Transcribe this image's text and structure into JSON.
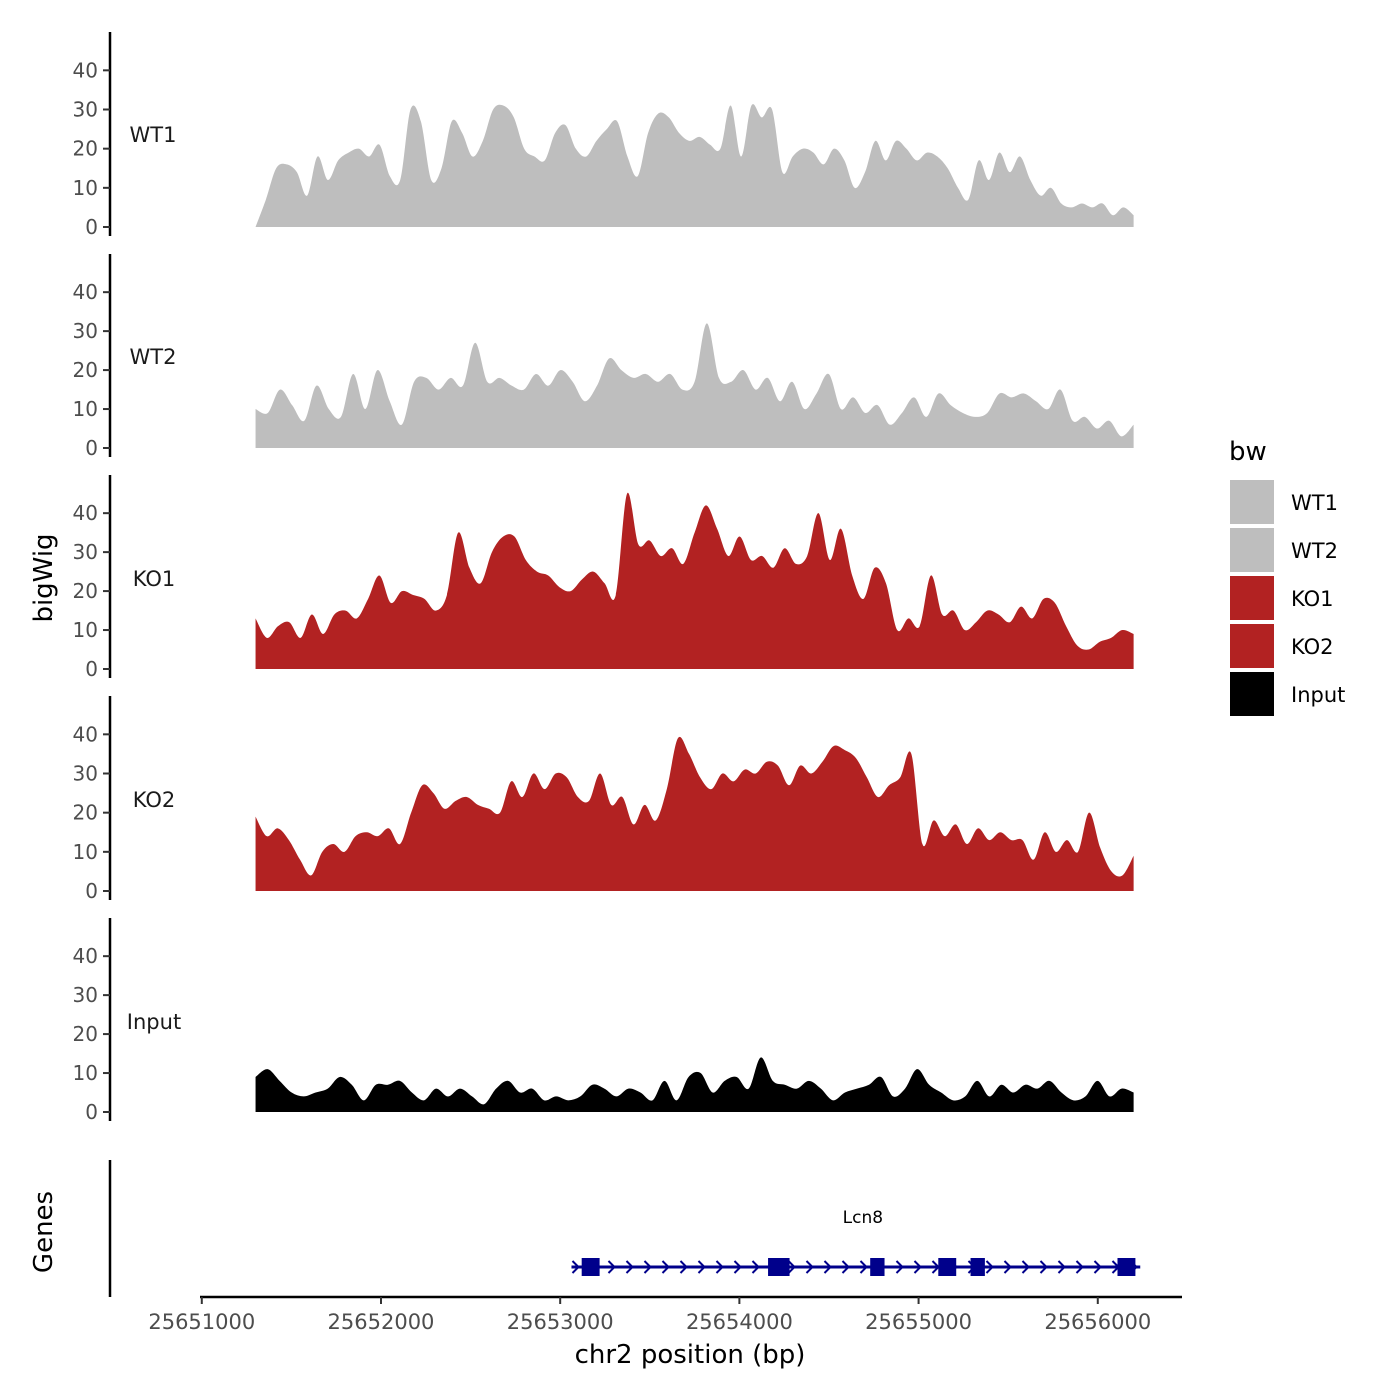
{
  "chart_data": {
    "type": "area",
    "ylabel": "bigWig",
    "xlabel": "chr2 position (bp)",
    "genes_label": "Genes",
    "x_ticks": [
      "25651000",
      "25652000",
      "25653000",
      "25654000",
      "25655000",
      "25656000"
    ],
    "x_tick_values": [
      25651000,
      25652000,
      25653000,
      25654000,
      25655000,
      25656000
    ],
    "xlim": [
      25650990,
      25656470
    ],
    "ylim": [
      0,
      48
    ],
    "y_ticks": [
      "0",
      "10",
      "20",
      "30",
      "40"
    ],
    "y_tick_values": [
      0,
      10,
      20,
      30,
      40
    ],
    "x_range": [
      25651300,
      25656200
    ],
    "legend": {
      "title": "bw",
      "position": "right",
      "entries": [
        {
          "label": "WT1",
          "color": "#bebebe"
        },
        {
          "label": "WT2",
          "color": "#bebebe"
        },
        {
          "label": "KO1",
          "color": "#b22222"
        },
        {
          "label": "KO2",
          "color": "#b22222"
        },
        {
          "label": "Input",
          "color": "#000000"
        }
      ]
    },
    "series": [
      {
        "name": "WT1",
        "color": "#bebebe",
        "values": [
          0,
          7,
          15,
          16,
          14,
          8,
          18,
          12,
          17,
          19,
          20,
          18,
          21,
          13,
          12,
          30,
          27,
          12,
          15,
          27,
          24,
          18,
          22,
          30,
          31,
          28,
          20,
          18,
          17,
          24,
          26,
          20,
          18,
          22,
          25,
          27,
          18,
          13,
          24,
          29,
          28,
          24,
          22,
          23,
          21,
          20,
          31,
          18,
          31,
          28,
          30,
          14,
          18,
          20,
          19,
          16,
          20,
          17,
          10,
          14,
          22,
          17,
          22,
          20,
          17,
          19,
          18,
          15,
          10,
          7,
          17,
          12,
          19,
          14,
          18,
          12,
          8,
          10,
          6,
          5,
          6,
          5,
          6,
          3,
          5,
          3
        ]
      },
      {
        "name": "WT2",
        "color": "#bebebe",
        "values": [
          10,
          9,
          15,
          11,
          7,
          16,
          10,
          8,
          19,
          10,
          20,
          12,
          6,
          17,
          18,
          15,
          18,
          16,
          27,
          17,
          18,
          16,
          15,
          19,
          16,
          20,
          17,
          12,
          16,
          23,
          20,
          18,
          19,
          17,
          19,
          15,
          17,
          32,
          18,
          17,
          20,
          15,
          18,
          12,
          17,
          10,
          14,
          19,
          10,
          13,
          9,
          11,
          6,
          9,
          13,
          8,
          14,
          11,
          9,
          8,
          9,
          14,
          13,
          14,
          12,
          10,
          15,
          7,
          8,
          5,
          7,
          3,
          6
        ]
      },
      {
        "name": "KO1",
        "color": "#b22222",
        "values": [
          13,
          8,
          11,
          12,
          8,
          14,
          9,
          14,
          15,
          13,
          18,
          24,
          17,
          20,
          19,
          18,
          15,
          19,
          35,
          26,
          22,
          30,
          34,
          34,
          28,
          25,
          24,
          21,
          20,
          23,
          25,
          22,
          19,
          45,
          32,
          33,
          29,
          31,
          27,
          35,
          42,
          36,
          29,
          34,
          28,
          29,
          26,
          31,
          27,
          29,
          40,
          28,
          36,
          24,
          18,
          26,
          22,
          10,
          13,
          11,
          24,
          14,
          15,
          10,
          12,
          15,
          14,
          12,
          16,
          13,
          18,
          17,
          11,
          6,
          5,
          7,
          8,
          10,
          9
        ]
      },
      {
        "name": "KO2",
        "color": "#b22222",
        "values": [
          19,
          14,
          16,
          13,
          8,
          4,
          10,
          12,
          10,
          14,
          15,
          14,
          16,
          12,
          20,
          27,
          25,
          21,
          23,
          24,
          22,
          21,
          20,
          28,
          24,
          30,
          26,
          30,
          29,
          24,
          23,
          30,
          22,
          24,
          17,
          22,
          18,
          26,
          39,
          35,
          29,
          26,
          30,
          28,
          31,
          30,
          33,
          32,
          27,
          32,
          30,
          33,
          37,
          36,
          34,
          29,
          24,
          27,
          29,
          35,
          12,
          18,
          14,
          17,
          12,
          16,
          13,
          15,
          13,
          13,
          8,
          15,
          10,
          13,
          10,
          20,
          11,
          5,
          4,
          9
        ]
      },
      {
        "name": "Input",
        "color": "#000000",
        "values": [
          9,
          11,
          8,
          5,
          4,
          5,
          6,
          9,
          7,
          3,
          7,
          7,
          8,
          5,
          3,
          6,
          4,
          6,
          4,
          2,
          6,
          8,
          5,
          6,
          3,
          4,
          3,
          4,
          7,
          6,
          4,
          6,
          5,
          3,
          8,
          3,
          9,
          10,
          5,
          8,
          9,
          6,
          14,
          8,
          7,
          6,
          8,
          6,
          3,
          5,
          6,
          7,
          9,
          4,
          6,
          11,
          7,
          5,
          3,
          4,
          8,
          4,
          7,
          5,
          7,
          6,
          8,
          5,
          3,
          4,
          8,
          4,
          6,
          5
        ]
      }
    ],
    "genes": [
      {
        "name": "Lcn8",
        "strand": "+",
        "start": 25653130,
        "end": 25656170,
        "exons": [
          [
            25653120,
            25653220
          ],
          [
            25654160,
            25654280
          ],
          [
            25654730,
            25654810
          ],
          [
            25655110,
            25655210
          ],
          [
            25655290,
            25655370
          ],
          [
            25656110,
            25656210
          ]
        ]
      }
    ]
  }
}
